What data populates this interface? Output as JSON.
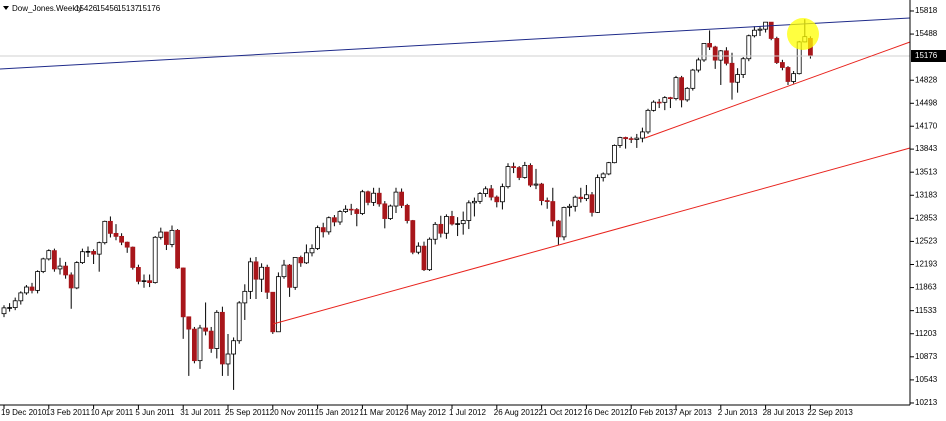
{
  "chart_data": {
    "type": "candlestick",
    "title": "Dow_Jones.Weekly",
    "categories": [
      "19 Dec 2010",
      null,
      null,
      null,
      null,
      null,
      null,
      null,
      "13 Feb 2011",
      null,
      null,
      null,
      null,
      null,
      null,
      null,
      "10 Apr 2011",
      null,
      null,
      null,
      null,
      null,
      null,
      null,
      "5 Jun 2011",
      null,
      null,
      null,
      null,
      null,
      null,
      null,
      "31 Jul 2011",
      null,
      null,
      null,
      null,
      null,
      null,
      null,
      "25 Sep 2011",
      null,
      null,
      null,
      null,
      null,
      null,
      null,
      "20 Nov 2011",
      null,
      null,
      null,
      null,
      null,
      null,
      null,
      "15 Jan 2012",
      null,
      null,
      null,
      null,
      null,
      null,
      null,
      "11 Mar 2012",
      null,
      null,
      null,
      null,
      null,
      null,
      null,
      "6 May 2012",
      null,
      null,
      null,
      null,
      null,
      null,
      null,
      "1 Jul 2012",
      null,
      null,
      null,
      null,
      null,
      null,
      null,
      "26 Aug 2012",
      null,
      null,
      null,
      null,
      null,
      null,
      null,
      "21 Oct 2012",
      null,
      null,
      null,
      null,
      null,
      null,
      null,
      "16 Dec 2012",
      null,
      null,
      null,
      null,
      null,
      null,
      null,
      "10 Feb 2013",
      null,
      null,
      null,
      null,
      null,
      null,
      null,
      "7 Apr 2013",
      null,
      null,
      null,
      null,
      null,
      null,
      null,
      "2 Jun 2013",
      null,
      null,
      null,
      null,
      null,
      null,
      null,
      "28 Jul 2013",
      null,
      null,
      null,
      null,
      null,
      null,
      null,
      "22 Sep 2013"
    ],
    "open": [
      11490,
      11573,
      11577,
      11674,
      11787,
      11871,
      11823,
      12092,
      12273,
      12391,
      12130,
      12170,
      12044,
      11858,
      12220,
      12376,
      12380,
      12341,
      12505,
      12810,
      12638,
      12595,
      12512,
      12441,
      12151,
      11952,
      11961,
      11934,
      12582,
      12657,
      12479,
      12681,
      12143,
      11445,
      11269,
      10818,
      11285,
      11240,
      10992,
      11509,
      10771,
      10913,
      11103,
      11644,
      11809,
      12231,
      11983,
      12153,
      11796,
      11231,
      12019,
      12184,
      11867,
      12294,
      12217,
      12360,
      12422,
      12720,
      12660,
      12862,
      12801,
      12950,
      12983,
      12978,
      12922,
      13233,
      13081,
      13212,
      13060,
      12850,
      13029,
      13228,
      13038,
      12821,
      12369,
      12455,
      12119,
      12554,
      12767,
      12640,
      12880,
      12772,
      12777,
      12822,
      13075,
      13096,
      13207,
      13275,
      13157,
      13090,
      13306,
      13593,
      13579,
      13437,
      13610,
      13328,
      13343,
      13107,
      13093,
      12815,
      12588,
      13009,
      13025,
      13155,
      13135,
      13190,
      12938,
      13435,
      13488,
      13649,
      13895,
      14009,
      13992,
      13981,
      14000,
      14089,
      14397,
      14514,
      14512,
      14579,
      14565,
      14865,
      14547,
      14712,
      14973,
      15118,
      15354,
      15303,
      15115,
      15248,
      15070,
      14799,
      14909,
      15135,
      15464,
      15543,
      15558,
      15658,
      15425,
      15081,
      15010,
      14810,
      14922,
      15376,
      15426
    ],
    "high": [
      11610,
      11640,
      11720,
      11810,
      11900,
      11930,
      12110,
      12290,
      12410,
      12420,
      12290,
      12230,
      12080,
      12240,
      12420,
      12450,
      12410,
      12520,
      12820,
      12880,
      12770,
      12640,
      12520,
      12450,
      12190,
      12050,
      12050,
      12600,
      12720,
      12660,
      12750,
      12700,
      12150,
      11450,
      11300,
      11330,
      11650,
      11300,
      11540,
      11590,
      11200,
      11150,
      11670,
      11910,
      12290,
      12300,
      12210,
      12190,
      11800,
      12080,
      12260,
      12200,
      12300,
      12320,
      12480,
      12480,
      12750,
      12790,
      12880,
      12900,
      12970,
      13040,
      13060,
      13000,
      13260,
      13250,
      13290,
      13290,
      13100,
      13050,
      13290,
      13280,
      13060,
      12830,
      12510,
      12520,
      12580,
      12800,
      12890,
      12910,
      12960,
      12870,
      12950,
      13110,
      13150,
      13230,
      13310,
      13330,
      13180,
      13350,
      13640,
      13650,
      13600,
      13660,
      13640,
      13560,
      13360,
      13150,
      13290,
      12830,
      13020,
      13060,
      13180,
      13290,
      13330,
      13230,
      13480,
      13510,
      13660,
      13910,
      14020,
      14020,
      14020,
      14060,
      14150,
      14420,
      14540,
      14560,
      14600,
      14590,
      14890,
      14890,
      14730,
      14990,
      15150,
      15360,
      15540,
      15320,
      15260,
      15300,
      15220,
      15000,
      15160,
      15480,
      15600,
      15600,
      15660,
      15660,
      15450,
      15120,
      15030,
      14960,
      15390,
      15700,
      15456
    ],
    "low": [
      11440,
      11520,
      11540,
      11620,
      11760,
      11780,
      11780,
      12070,
      12250,
      12090,
      12050,
      11990,
      11560,
      11840,
      12200,
      12300,
      12200,
      12090,
      12480,
      12580,
      12540,
      12470,
      12360,
      12120,
      11910,
      11860,
      11870,
      11920,
      12550,
      12400,
      12440,
      12130,
      11130,
      10600,
      10780,
      10700,
      11180,
      10930,
      10850,
      10600,
      10600,
      10400,
      11060,
      11400,
      11700,
      11700,
      11800,
      11700,
      11200,
      11230,
      11990,
      11730,
      11830,
      12160,
      12200,
      12310,
      12400,
      12580,
      12620,
      12740,
      12760,
      12930,
      12900,
      12740,
      12900,
      13040,
      13030,
      13020,
      12710,
      12830,
      12930,
      13000,
      12780,
      12340,
      12340,
      12100,
      12100,
      12480,
      12580,
      12560,
      12750,
      12600,
      12620,
      12700,
      12880,
      13060,
      13160,
      13110,
      13010,
      12980,
      13280,
      13500,
      13400,
      13420,
      13300,
      13270,
      13040,
      12990,
      12740,
      12470,
      12540,
      12880,
      12950,
      13080,
      13100,
      12880,
      12930,
      13380,
      13470,
      13640,
      13860,
      13850,
      13930,
      13860,
      13940,
      14060,
      14380,
      14430,
      14400,
      14430,
      14540,
      14440,
      14520,
      14680,
      14940,
      15090,
      15260,
      14990,
      14760,
      15040,
      14550,
      14650,
      14860,
      15100,
      15440,
      15460,
      15510,
      15400,
      15060,
      14970,
      14760,
      14780,
      14910,
      15370,
      15137
    ],
    "close": [
      11573,
      11577,
      11674,
      11787,
      11871,
      11823,
      12092,
      12273,
      12391,
      12130,
      12170,
      12044,
      11858,
      12220,
      12376,
      12380,
      12341,
      12505,
      12810,
      12638,
      12595,
      12512,
      12441,
      12151,
      11952,
      11961,
      11934,
      12582,
      12657,
      12479,
      12681,
      12143,
      11445,
      11269,
      10818,
      11285,
      11240,
      10992,
      11509,
      10771,
      10913,
      11103,
      11644,
      11809,
      12231,
      11983,
      12153,
      11796,
      11231,
      12019,
      12184,
      11867,
      12294,
      12217,
      12360,
      12422,
      12720,
      12660,
      12862,
      12801,
      12950,
      12983,
      12978,
      12922,
      13233,
      13081,
      13212,
      13060,
      12850,
      13029,
      13228,
      13038,
      12821,
      12369,
      12455,
      12119,
      12554,
      12767,
      12640,
      12880,
      12772,
      12777,
      12822,
      13075,
      13096,
      13207,
      13275,
      13157,
      13090,
      13306,
      13593,
      13579,
      13437,
      13610,
      13328,
      13343,
      13107,
      13093,
      12815,
      12588,
      13009,
      13025,
      13155,
      13135,
      13190,
      12938,
      13435,
      13488,
      13649,
      13895,
      14009,
      13992,
      13981,
      14000,
      14089,
      14397,
      14514,
      14512,
      14579,
      14565,
      14865,
      14547,
      14712,
      14973,
      15118,
      15354,
      15303,
      15115,
      15248,
      15070,
      14799,
      14909,
      15135,
      15464,
      15543,
      15558,
      15658,
      15425,
      15081,
      15010,
      14810,
      14922,
      15376,
      15451,
      15176
    ],
    "up_color": "#ffffff",
    "down_color": "#a8161b",
    "wick_color": "#000000",
    "ylim": [
      10184,
      15975
    ],
    "yticks": [
      15818,
      15488,
      14828,
      14498,
      14170,
      13843,
      13513,
      13183,
      12853,
      12523,
      12193,
      11863,
      11533,
      11203,
      10873,
      10543,
      10213
    ]
  }
}
